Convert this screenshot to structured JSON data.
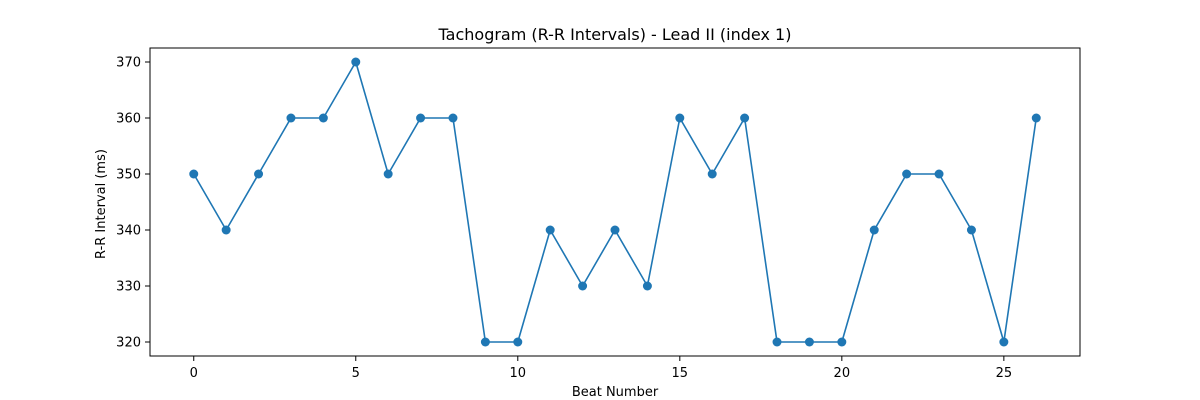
{
  "chart_data": {
    "type": "line",
    "title": "Tachogram (R-R Intervals) - Lead II (index 1)",
    "xlabel": "Beat Number",
    "ylabel": "R-R Interval (ms)",
    "xlim": [
      -1.35,
      27.35
    ],
    "ylim": [
      317.5,
      372.5
    ],
    "xticks": [
      0,
      5,
      10,
      15,
      20,
      25
    ],
    "yticks": [
      320,
      330,
      340,
      350,
      360,
      370
    ],
    "grid": false,
    "legend": "none",
    "marker": "circle",
    "color": "#1f77b4",
    "x": [
      0,
      1,
      2,
      3,
      4,
      5,
      6,
      7,
      8,
      9,
      10,
      11,
      12,
      13,
      14,
      15,
      16,
      17,
      18,
      19,
      20,
      21,
      22,
      23,
      24,
      25,
      26
    ],
    "series": [
      {
        "values": [
          350,
          340,
          350,
          360,
          360,
          370,
          350,
          360,
          360,
          320,
          320,
          340,
          330,
          340,
          330,
          360,
          350,
          360,
          320,
          320,
          320,
          340,
          350,
          350,
          340,
          320,
          360
        ]
      }
    ]
  }
}
